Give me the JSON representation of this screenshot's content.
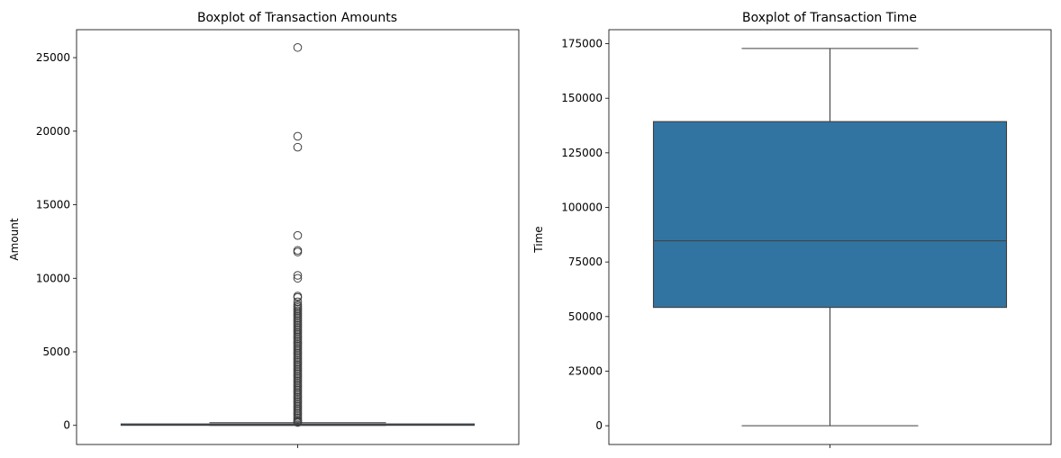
{
  "chart_data": [
    {
      "type": "boxplot",
      "title": "Boxplot of Transaction Amounts",
      "xlabel": "",
      "ylabel": "Amount",
      "ylim": [
        -1300,
        26900
      ],
      "yticks": [
        0,
        5000,
        10000,
        15000,
        20000,
        25000
      ],
      "grid": false,
      "box": {
        "q1": 5.6,
        "median": 22,
        "q3": 77,
        "whisker_low": 0,
        "whisker_high": 184,
        "color": "#3274a1"
      },
      "outliers": [
        25691,
        19656,
        18910,
        12910,
        11898,
        11789,
        10200,
        10000,
        8790,
        8700,
        8400,
        8200,
        8100,
        8000,
        7900,
        7800,
        7700,
        7600,
        7500,
        7400,
        7300,
        7200,
        7100,
        7000,
        6900,
        6800,
        6700,
        6600,
        6500,
        6400,
        6300,
        6200,
        6100,
        6000,
        5900,
        5800,
        5700,
        5600,
        5500,
        5400,
        5300,
        5200,
        5100,
        5000,
        4900,
        4800,
        4700,
        4600,
        4500,
        4400,
        4300,
        4200,
        4100,
        4000,
        3900,
        3800,
        3700,
        3600,
        3500,
        3400,
        3300,
        3200,
        3100,
        3000,
        2900,
        2800,
        2700,
        2600,
        2500,
        2400,
        2300,
        2200,
        2100,
        2000,
        1900,
        1800,
        1700,
        1600,
        1500,
        1400,
        1300,
        1200,
        1100,
        1000,
        900,
        800,
        700,
        600,
        500,
        400,
        300,
        250,
        200
      ]
    },
    {
      "type": "boxplot",
      "title": "Boxplot of Transaction Time",
      "xlabel": "",
      "ylabel": "Time",
      "ylim": [
        -8600,
        181400
      ],
      "yticks": [
        0,
        25000,
        50000,
        75000,
        100000,
        125000,
        150000,
        175000
      ],
      "grid": false,
      "box": {
        "q1": 54200,
        "median": 84700,
        "q3": 139300,
        "whisker_low": 0,
        "whisker_high": 172800,
        "color": "#3274a1"
      },
      "outliers": []
    }
  ]
}
